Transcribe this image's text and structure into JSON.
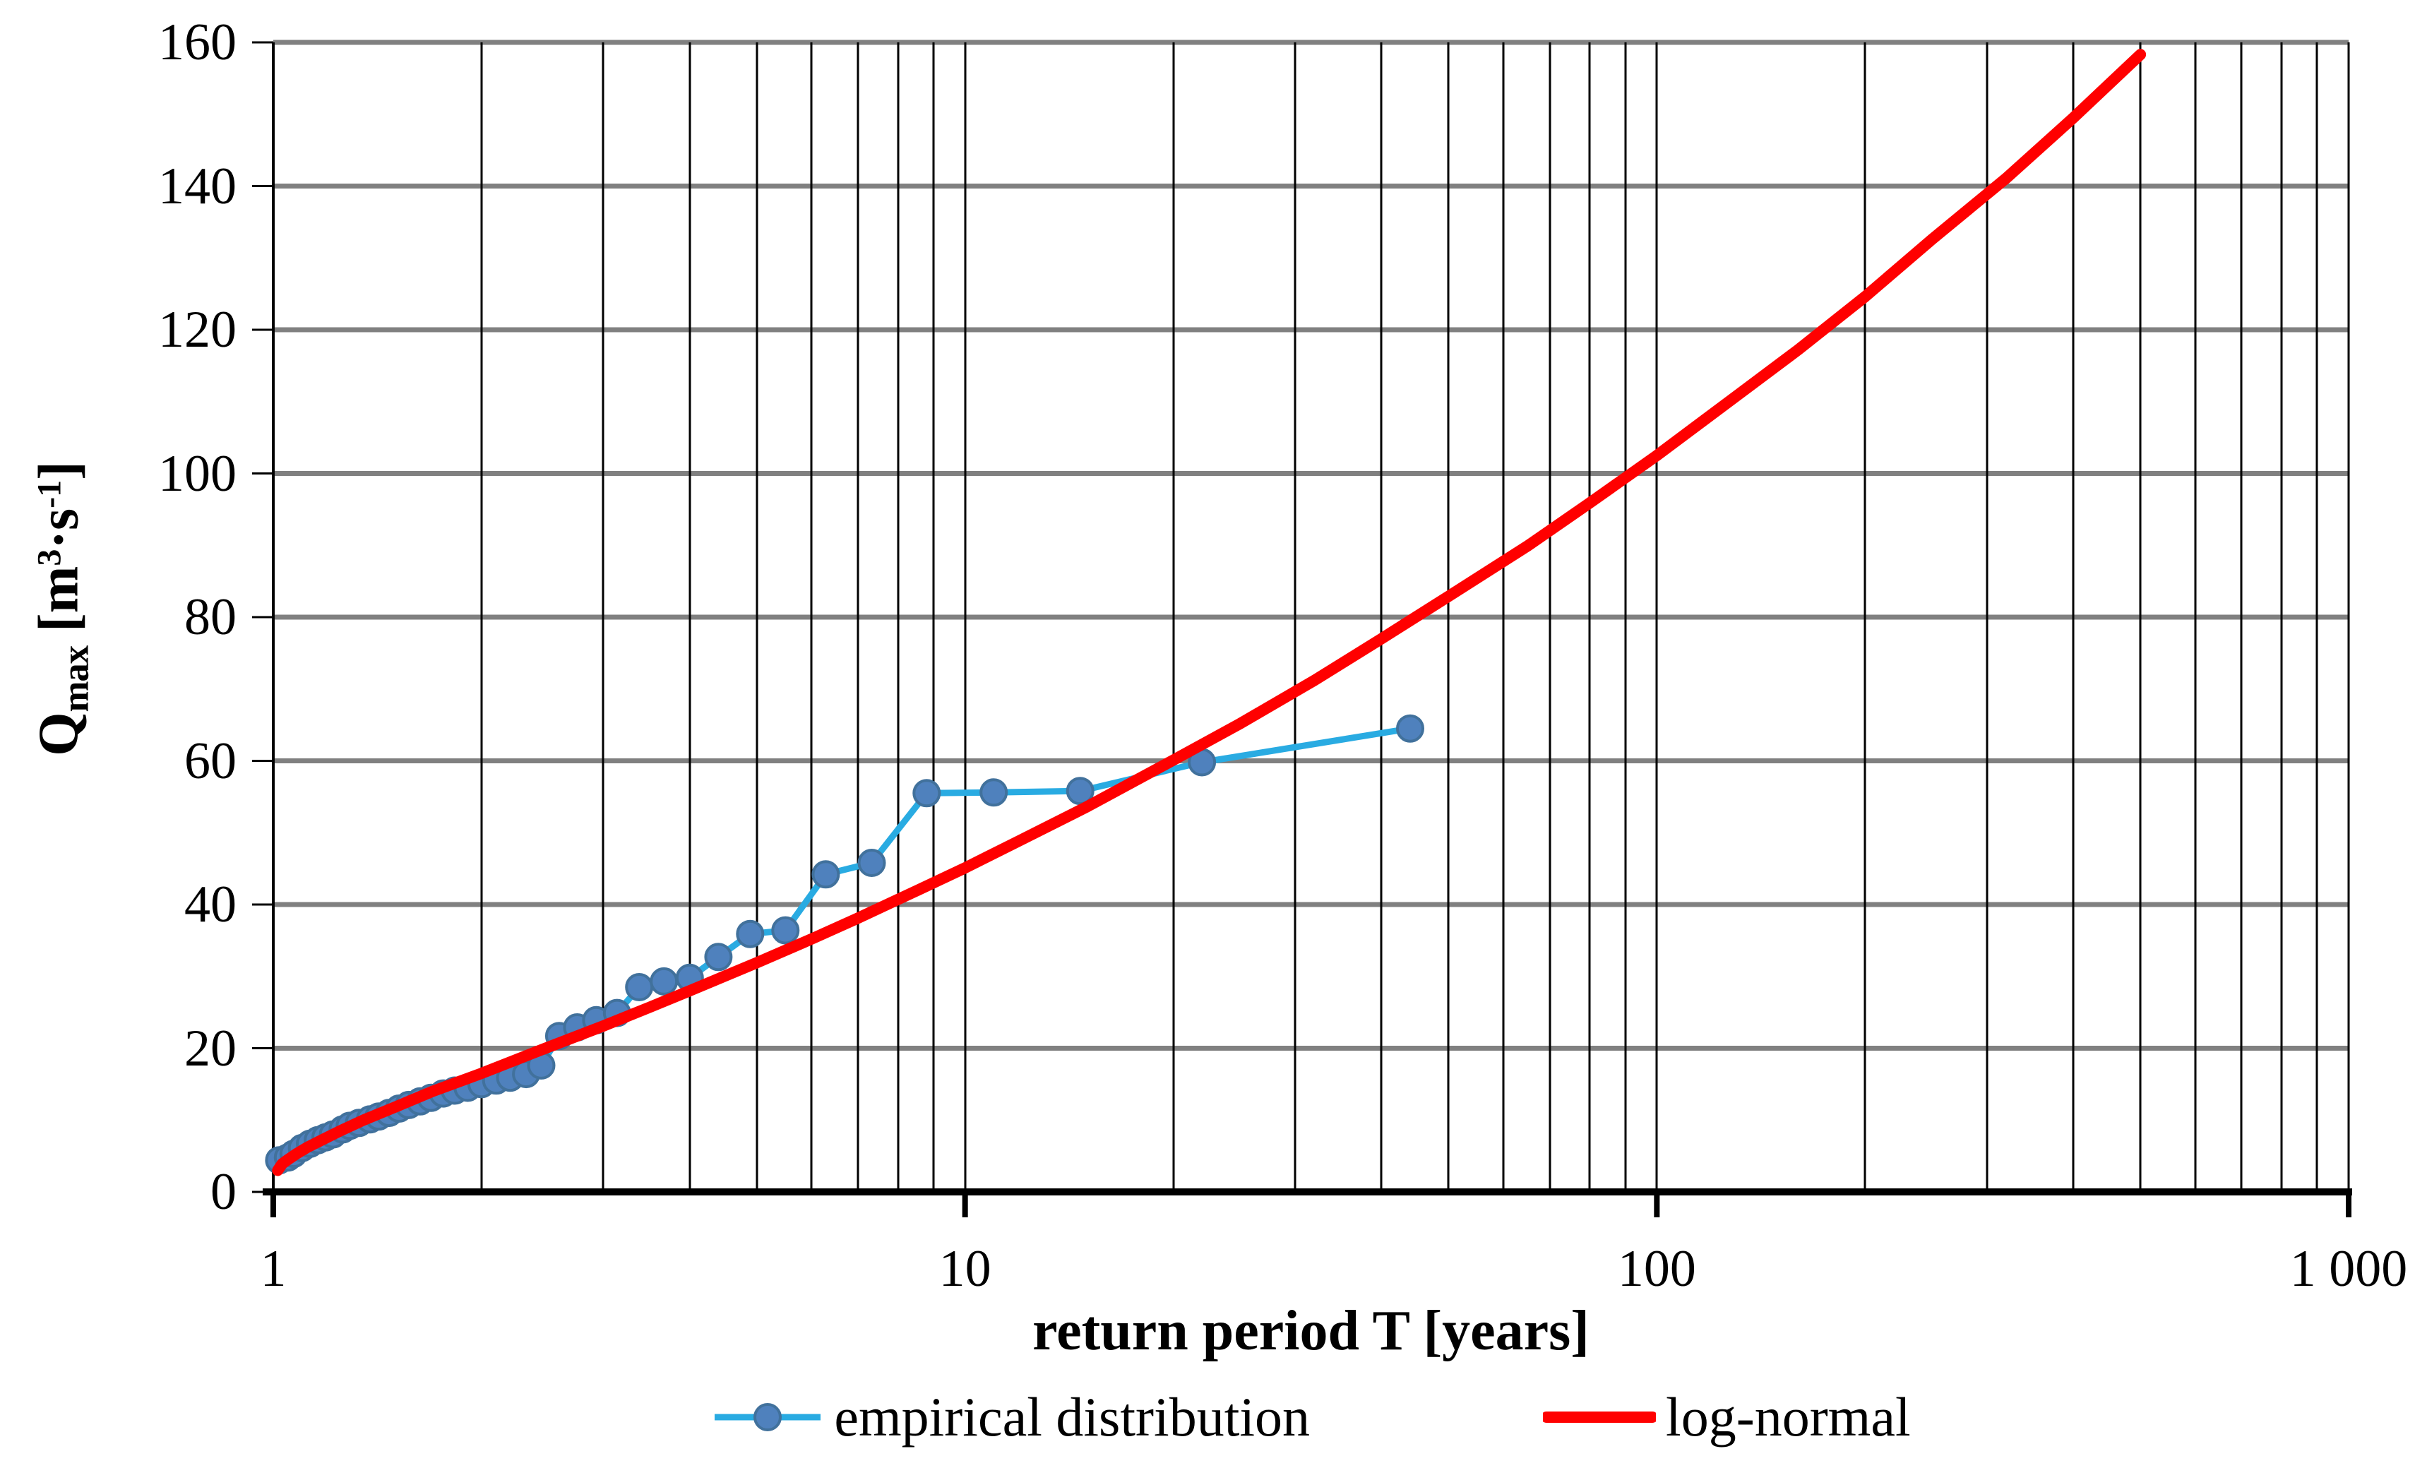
{
  "figure": {
    "background": "#FFFFFF",
    "text_color": "#000000"
  },
  "y_axis_title": {
    "symbol": "Q",
    "subscript": "max",
    "open": " [m",
    "exponent": "3",
    "dot_s": "·s",
    "inverse_exponent": "-1",
    "close": "]"
  },
  "chart_data": {
    "type": "line",
    "x_scale": "log",
    "xlabel": "return period T [years]",
    "ylabel": "Qmax [m3·s-1]",
    "xlim": [
      1,
      1000
    ],
    "ylim": [
      0,
      160
    ],
    "grid": {
      "horizontal_color": "#808080",
      "vertical_color": "#000000",
      "horizontal_values": [
        20,
        40,
        60,
        80,
        100,
        120,
        140,
        160
      ],
      "vertical_minor_multipliers": [
        2,
        3,
        4,
        5,
        6,
        7,
        8,
        9,
        10
      ]
    },
    "axis_color": "#000000",
    "x_ticks": [
      {
        "value": 1,
        "label": "1"
      },
      {
        "value": 10,
        "label": "10"
      },
      {
        "value": 100,
        "label": "100"
      },
      {
        "value": 1000,
        "label": "1 000"
      }
    ],
    "y_ticks": [
      {
        "value": 0,
        "label": "0"
      },
      {
        "value": 20,
        "label": "20"
      },
      {
        "value": 40,
        "label": "40"
      },
      {
        "value": 60,
        "label": "60"
      },
      {
        "value": 80,
        "label": "80"
      },
      {
        "value": 100,
        "label": "100"
      },
      {
        "value": 120,
        "label": "120"
      },
      {
        "value": 140,
        "label": "140"
      },
      {
        "value": 160,
        "label": "160"
      }
    ],
    "legend_position": "bottom",
    "series": [
      {
        "name": "empirical distribution",
        "type": "line+marker",
        "line_color": "#29ABE2",
        "marker_color": "#4F81BD",
        "marker_edge_color": "#41719C",
        "points": [
          [
            1.02,
            4.4
          ],
          [
            1.05,
            4.8
          ],
          [
            1.07,
            5.3
          ],
          [
            1.1,
            6.1
          ],
          [
            1.13,
            6.7
          ],
          [
            1.16,
            7.2
          ],
          [
            1.19,
            7.6
          ],
          [
            1.22,
            8.0
          ],
          [
            1.26,
            8.7
          ],
          [
            1.29,
            9.2
          ],
          [
            1.33,
            9.6
          ],
          [
            1.38,
            10.1
          ],
          [
            1.42,
            10.5
          ],
          [
            1.47,
            11.0
          ],
          [
            1.52,
            11.6
          ],
          [
            1.57,
            12.1
          ],
          [
            1.63,
            12.6
          ],
          [
            1.69,
            13.1
          ],
          [
            1.76,
            13.7
          ],
          [
            1.83,
            14.1
          ],
          [
            1.91,
            14.5
          ],
          [
            2.0,
            15.0
          ],
          [
            2.1,
            15.5
          ],
          [
            2.2,
            15.9
          ],
          [
            2.32,
            16.4
          ],
          [
            2.44,
            17.6
          ],
          [
            2.59,
            21.7
          ],
          [
            2.75,
            22.9
          ],
          [
            2.93,
            23.9
          ],
          [
            3.14,
            24.9
          ],
          [
            3.38,
            28.5
          ],
          [
            3.67,
            29.3
          ],
          [
            4.0,
            29.8
          ],
          [
            4.4,
            32.7
          ],
          [
            4.89,
            35.9
          ],
          [
            5.5,
            36.4
          ],
          [
            6.29,
            44.2
          ],
          [
            7.33,
            45.8
          ],
          [
            8.8,
            55.5
          ],
          [
            11.0,
            55.6
          ],
          [
            14.67,
            55.8
          ],
          [
            22.0,
            59.8
          ],
          [
            44.0,
            64.5
          ]
        ]
      },
      {
        "name": "log-normal",
        "type": "line",
        "line_color": "#FF0000",
        "points": [
          [
            1.015,
            3.0
          ],
          [
            1.03,
            3.9
          ],
          [
            1.05,
            4.5
          ],
          [
            1.08,
            5.3
          ],
          [
            1.12,
            6.2
          ],
          [
            1.18,
            7.3
          ],
          [
            1.25,
            8.5
          ],
          [
            1.35,
            10.0
          ],
          [
            1.5,
            11.8
          ],
          [
            1.7,
            14.0
          ],
          [
            2.0,
            16.5
          ],
          [
            2.4,
            19.5
          ],
          [
            3.0,
            23.1
          ],
          [
            3.5,
            25.7
          ],
          [
            4.0,
            28.0
          ],
          [
            5.0,
            31.9
          ],
          [
            6.0,
            35.2
          ],
          [
            7.0,
            38.1
          ],
          [
            8.5,
            41.9
          ],
          [
            10,
            45.1
          ],
          [
            12,
            48.9
          ],
          [
            15,
            53.6
          ],
          [
            20,
            60.1
          ],
          [
            25,
            65.2
          ],
          [
            32,
            71.2
          ],
          [
            40,
            77.0
          ],
          [
            50,
            82.9
          ],
          [
            65,
            89.9
          ],
          [
            80,
            95.9
          ],
          [
            100,
            102.5
          ],
          [
            130,
            110.7
          ],
          [
            160,
            117.2
          ],
          [
            200,
            124.6
          ],
          [
            250,
            132.6
          ],
          [
            320,
            141.1
          ],
          [
            400,
            149.5
          ],
          [
            500,
            158.3
          ]
        ]
      }
    ]
  }
}
